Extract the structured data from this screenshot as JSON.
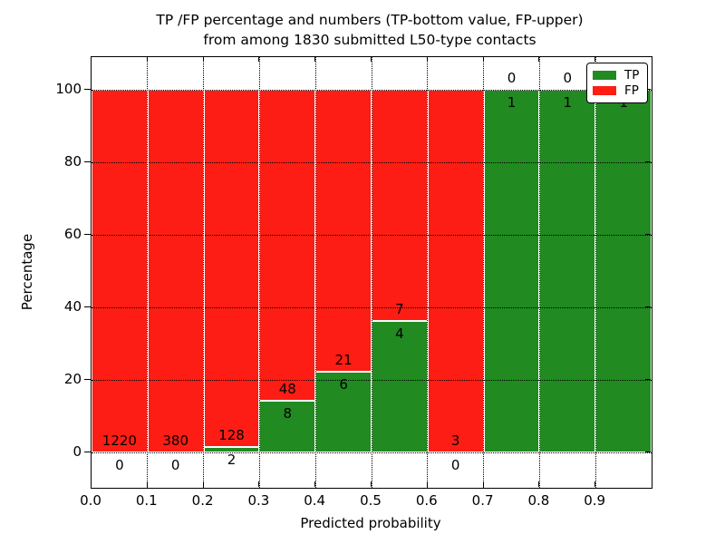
{
  "figure": {
    "title_line1": "TP /FP percentage and numbers (TP-bottom value, FP-upper)",
    "title_line2": "from among 1830 submitted L50-type contacts"
  },
  "axes": {
    "xlabel": "Predicted probability",
    "ylabel": "Percentage"
  },
  "chart_data": {
    "type": "bar",
    "stacked": true,
    "orientation": "vertical",
    "title": "TP /FP percentage and numbers (TP-bottom value, FP-upper) from among 1830 submitted L50-type contacts",
    "xlabel": "Predicted probability",
    "ylabel": "Percentage",
    "total_submitted": 1830,
    "bin_width": 0.1,
    "categories": [
      "0.0-0.1",
      "0.1-0.2",
      "0.2-0.3",
      "0.3-0.4",
      "0.4-0.5",
      "0.5-0.6",
      "0.6-0.7",
      "0.7-0.8",
      "0.8-0.9",
      "0.9-1.0"
    ],
    "x_tick_labels": [
      "0.0",
      "0.1",
      "0.2",
      "0.3",
      "0.4",
      "0.5",
      "0.6",
      "0.7",
      "0.8",
      "0.9"
    ],
    "y_ticks": [
      0,
      20,
      40,
      60,
      80,
      100
    ],
    "xlim": [
      0.0,
      1.0
    ],
    "ylim": [
      -9.75,
      109.0
    ],
    "grid": "dotted",
    "bar_scale": "percent of bin total (TP% bottom green, FP% upper red)",
    "series": [
      {
        "name": "TP",
        "color": "#218a21",
        "values": [
          0,
          0,
          2,
          8,
          6,
          4,
          0,
          1,
          1,
          1
        ]
      },
      {
        "name": "FP",
        "color": "#fd1d14",
        "values": [
          1220,
          380,
          128,
          48,
          21,
          7,
          3,
          0,
          0,
          0
        ]
      }
    ],
    "legend": {
      "position": "upper right",
      "entries": [
        "TP",
        "FP"
      ]
    }
  }
}
